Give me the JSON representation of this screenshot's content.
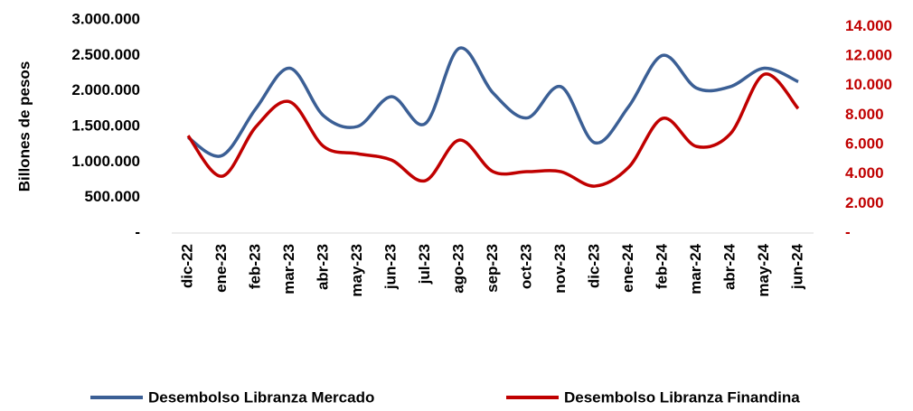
{
  "chart_data": {
    "type": "line",
    "y_label": "Billones de pesos",
    "categories": [
      "dic-22",
      "ene-23",
      "feb-23",
      "mar-23",
      "abr-23",
      "may-23",
      "jun-23",
      "jul-23",
      "ago-23",
      "sep-23",
      "oct-23",
      "nov-23",
      "dic-23",
      "ene-24",
      "feb-24",
      "mar-24",
      "abr-24",
      "may-24",
      "jun-24"
    ],
    "series": [
      {
        "name": "Desembolso Libranza Mercado",
        "color": "#3b5f95",
        "values": [
          1345000,
          1090000,
          1750000,
          2320000,
          1650000,
          1500000,
          1920000,
          1540000,
          2600000,
          1970000,
          1620000,
          2060000,
          1270000,
          1780000,
          2500000,
          2040000,
          2060000,
          2320000,
          2130000
        ]
      },
      {
        "name": "Desembolso Libranza Finandina",
        "color": "#c00000",
        "axis": "y2",
        "values": [
          6600,
          3850,
          7200,
          8900,
          5870,
          5380,
          4950,
          3550,
          6300,
          4160,
          4160,
          4160,
          3180,
          4460,
          7770,
          5870,
          6730,
          10760,
          8440
        ]
      }
    ],
    "ylim": [
      0,
      3000000
    ],
    "yticks": [
      {
        "value": 0,
        "label": "-"
      },
      {
        "value": 500000,
        "label": "500.000"
      },
      {
        "value": 1000000,
        "label": "1.000.000"
      },
      {
        "value": 1500000,
        "label": "1.500.000"
      },
      {
        "value": 2000000,
        "label": "2.000.000"
      },
      {
        "value": 2500000,
        "label": "2.500.000"
      },
      {
        "value": 3000000,
        "label": "3.000.000"
      }
    ],
    "y2lim": [
      0,
      14450
    ],
    "y2ticks": [
      {
        "value": 0,
        "label": "-"
      },
      {
        "value": 2000,
        "label": "2.000"
      },
      {
        "value": 4000,
        "label": "4.000"
      },
      {
        "value": 6000,
        "label": "6.000"
      },
      {
        "value": 8000,
        "label": "8.000"
      },
      {
        "value": 10000,
        "label": "10.000"
      },
      {
        "value": 12000,
        "label": "12.000"
      },
      {
        "value": 14000,
        "label": "14.000"
      }
    ],
    "y2color": "#c00000"
  }
}
